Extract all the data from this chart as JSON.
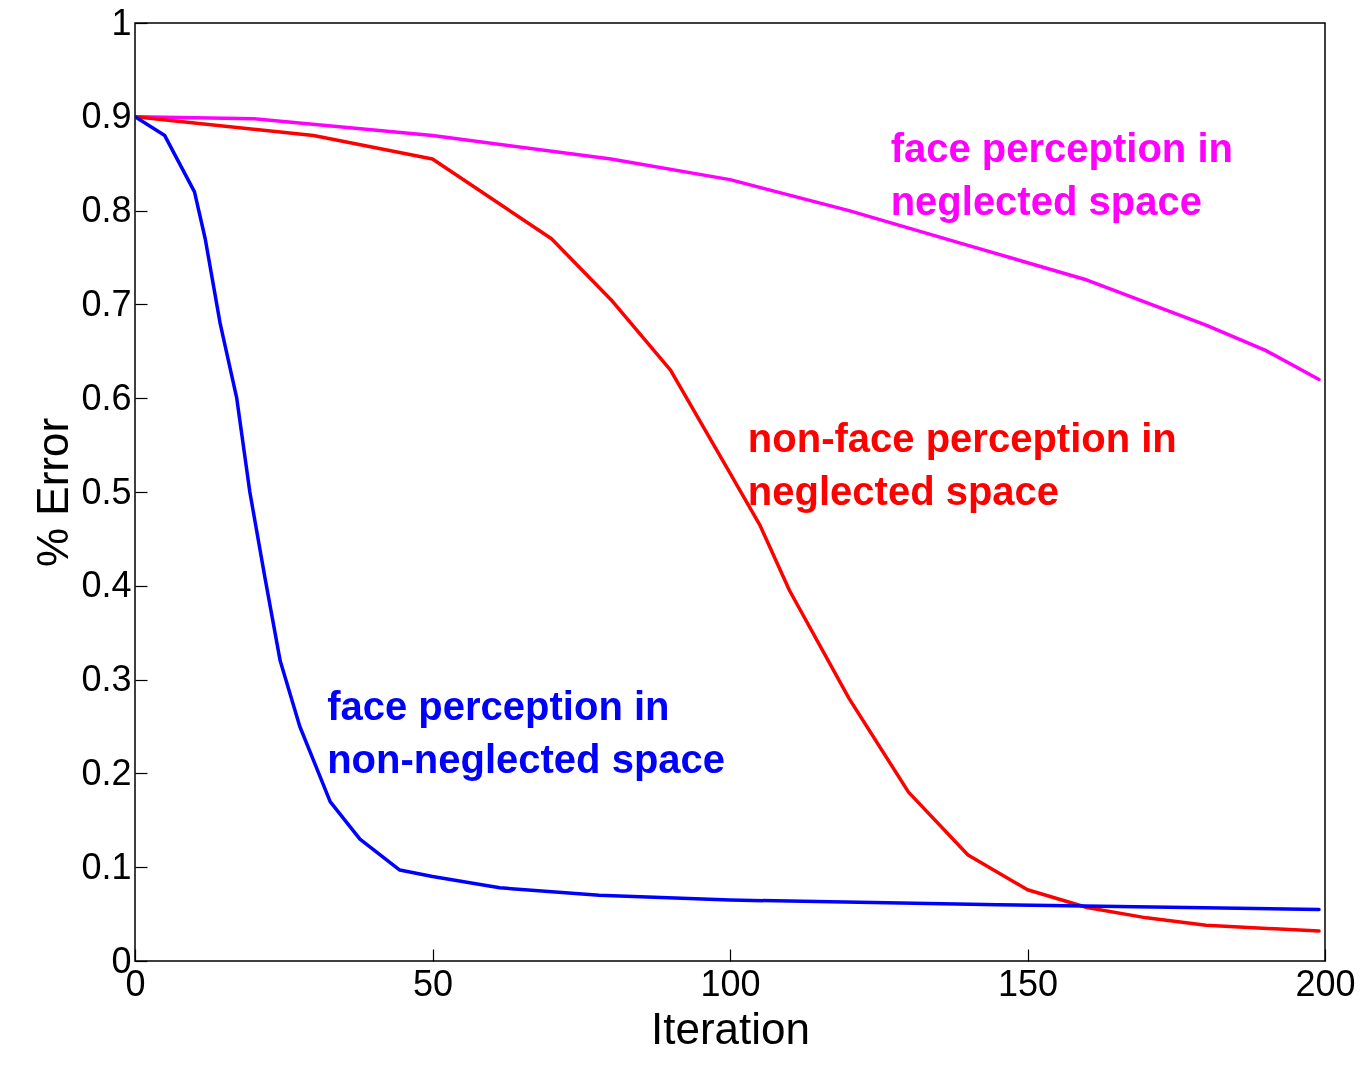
{
  "chart_data": {
    "type": "line",
    "xlabel": "Iteration",
    "ylabel": "% Error",
    "xlim": [
      0,
      200
    ],
    "ylim": [
      0,
      1
    ],
    "xticks": [
      0,
      50,
      100,
      150,
      200
    ],
    "yticks": [
      0,
      0.1,
      0.2,
      0.3,
      0.4,
      0.5,
      0.6,
      0.7,
      0.8,
      0.9,
      1
    ],
    "line_style": "solid",
    "marker": "none",
    "series": [
      {
        "name": "face perception in neglected space",
        "color": "#ff00ff",
        "x": [
          0,
          20,
          50,
          80,
          100,
          120,
          140,
          160,
          180,
          190,
          199
        ],
        "values": [
          0.9,
          0.898,
          0.88,
          0.855,
          0.833,
          0.8,
          0.763,
          0.726,
          0.678,
          0.651,
          0.62
        ]
      },
      {
        "name": "non-face perception in neglected space",
        "color": "#ff0000",
        "x": [
          0,
          30,
          50,
          70,
          80,
          90,
          100,
          105,
          110,
          120,
          130,
          140,
          150,
          160,
          170,
          180,
          199
        ],
        "values": [
          0.9,
          0.88,
          0.855,
          0.77,
          0.705,
          0.63,
          0.52,
          0.465,
          0.395,
          0.28,
          0.18,
          0.113,
          0.076,
          0.057,
          0.046,
          0.038,
          0.032
        ]
      },
      {
        "name": "face perception in non-neglected space",
        "color": "#0000ff",
        "x": [
          0,
          5,
          10,
          11.8,
          14.3,
          17.1,
          19.3,
          21.8,
          24.4,
          27.7,
          32.8,
          37.8,
          44.5,
          50,
          61.3,
          78,
          100,
          145,
          199
        ],
        "values": [
          0.9,
          0.88,
          0.82,
          0.77,
          0.68,
          0.6,
          0.5,
          0.41,
          0.32,
          0.25,
          0.17,
          0.13,
          0.097,
          0.09,
          0.078,
          0.07,
          0.065,
          0.06,
          0.055
        ]
      }
    ]
  }
}
